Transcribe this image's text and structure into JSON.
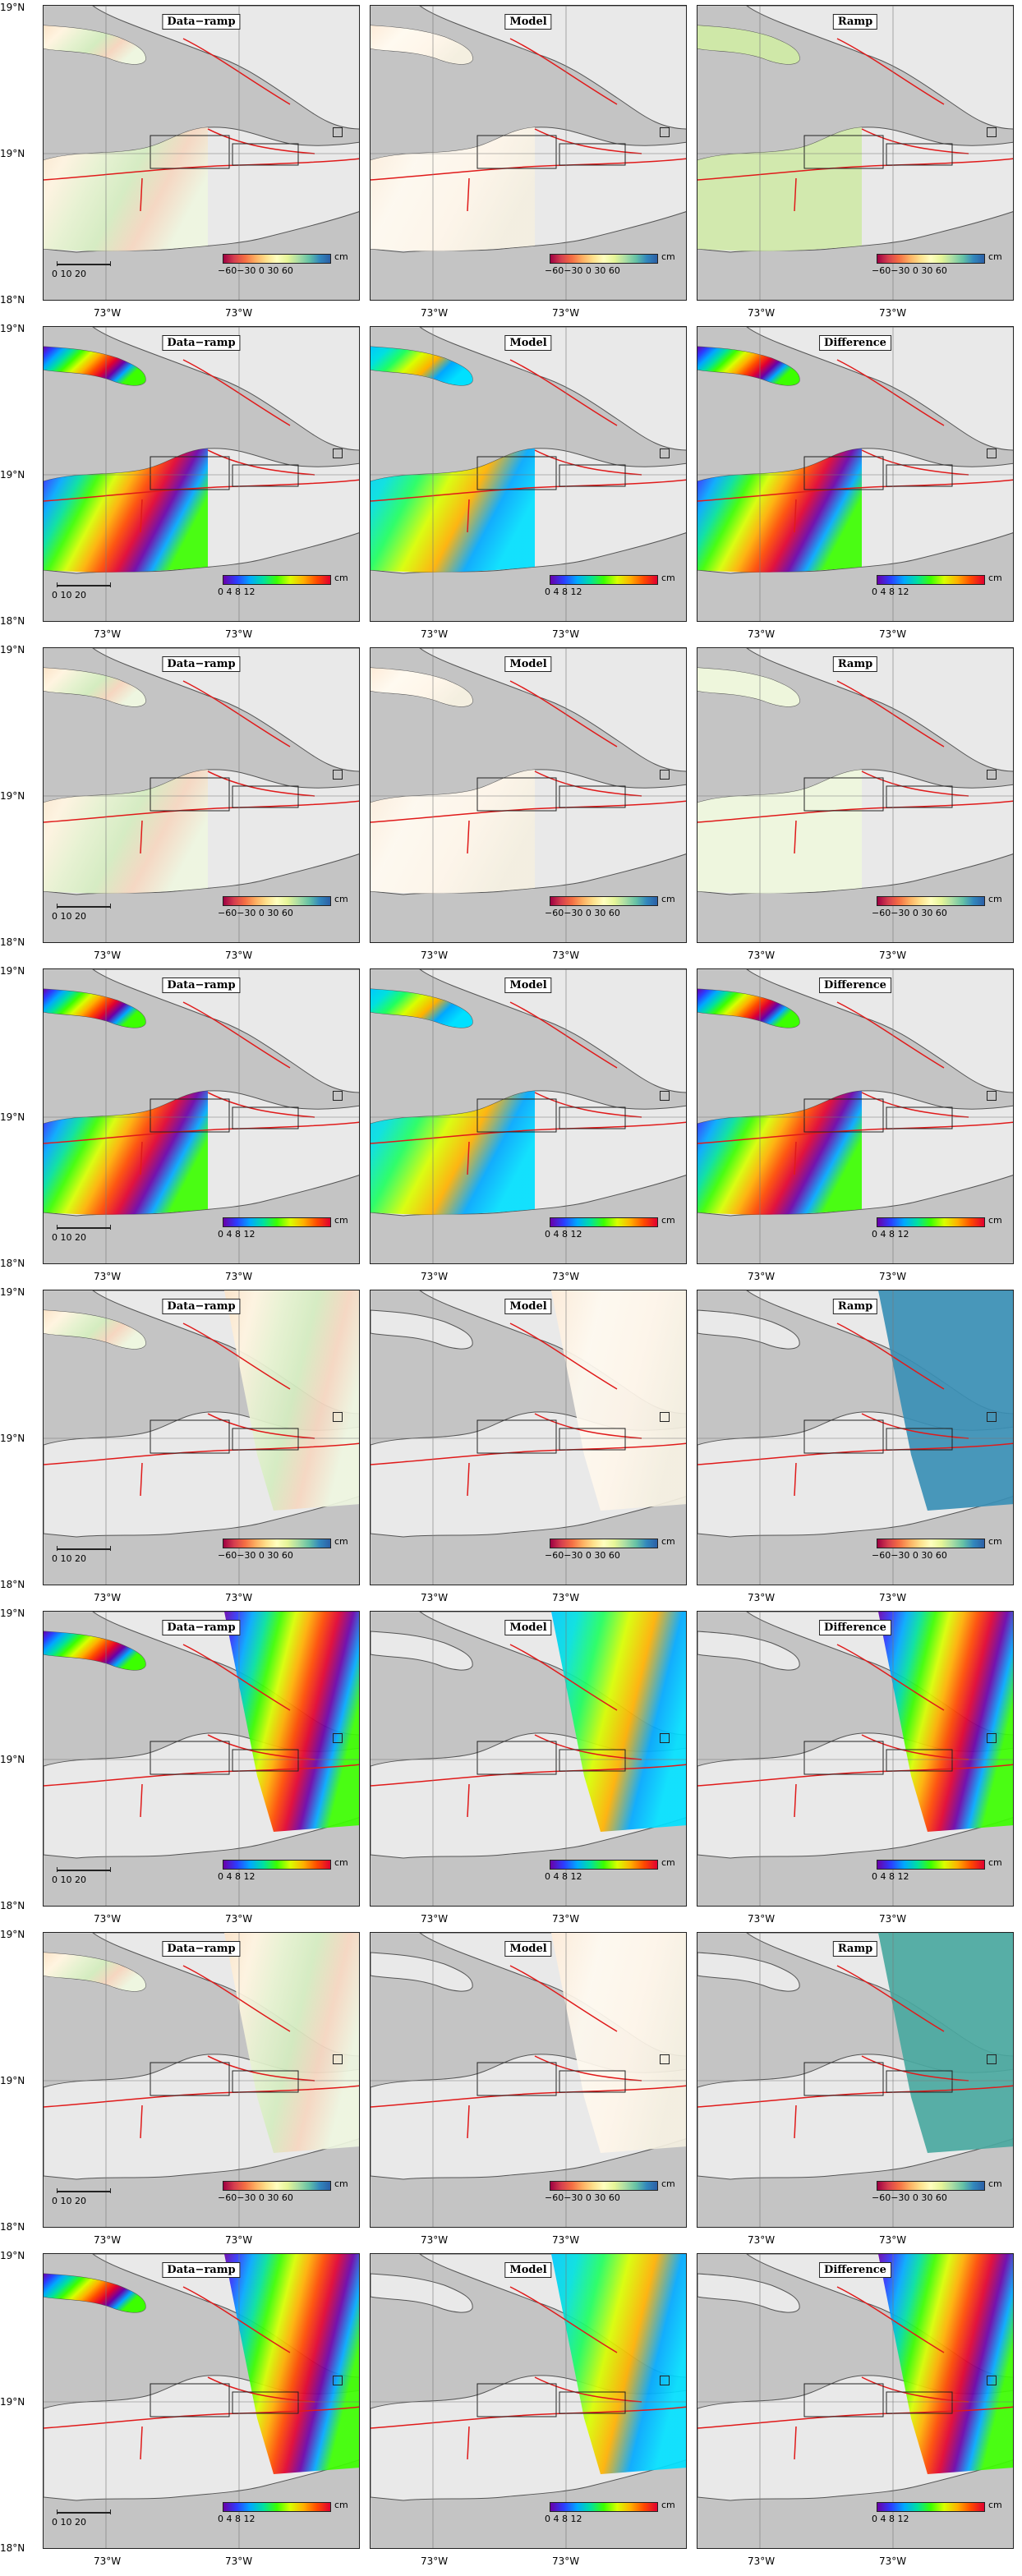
{
  "figure": {
    "rows": [
      {
        "panels": [
          {
            "label": "Data−ramp",
            "kind": "def",
            "fill": "deform"
          },
          {
            "label": "Model",
            "kind": "def",
            "fill": "deform-model"
          },
          {
            "label": "Ramp",
            "kind": "def",
            "fill": "ramp-green"
          }
        ]
      },
      {
        "panels": [
          {
            "label": "Data−ramp",
            "kind": "wrap",
            "fill": "fringe"
          },
          {
            "label": "Model",
            "kind": "wrap",
            "fill": "fringe-model"
          },
          {
            "label": "Difference",
            "kind": "wrap",
            "fill": "fringe"
          }
        ]
      },
      {
        "panels": [
          {
            "label": "Data−ramp",
            "kind": "def",
            "fill": "deform"
          },
          {
            "label": "Model",
            "kind": "def",
            "fill": "deform-model"
          },
          {
            "label": "Ramp",
            "kind": "def",
            "fill": "ramp-pale"
          }
        ]
      },
      {
        "panels": [
          {
            "label": "Data−ramp",
            "kind": "wrap",
            "fill": "fringe"
          },
          {
            "label": "Model",
            "kind": "wrap",
            "fill": "fringe-model"
          },
          {
            "label": "Difference",
            "kind": "wrap",
            "fill": "fringe"
          }
        ]
      },
      {
        "panels": [
          {
            "label": "Data−ramp",
            "kind": "def",
            "fill": "deform"
          },
          {
            "label": "Model",
            "kind": "def",
            "fill": "deform-model"
          },
          {
            "label": "Ramp",
            "kind": "def",
            "fill": "ramp-blue"
          }
        ]
      },
      {
        "panels": [
          {
            "label": "Data−ramp",
            "kind": "wrap",
            "fill": "fringe"
          },
          {
            "label": "Model",
            "kind": "wrap",
            "fill": "fringe-model"
          },
          {
            "label": "Difference",
            "kind": "wrap",
            "fill": "fringe"
          }
        ]
      },
      {
        "panels": [
          {
            "label": "Data−ramp",
            "kind": "def",
            "fill": "deform"
          },
          {
            "label": "Model",
            "kind": "def",
            "fill": "deform-model"
          },
          {
            "label": "Ramp",
            "kind": "def",
            "fill": "ramp-teal"
          }
        ]
      },
      {
        "panels": [
          {
            "label": "Data−ramp",
            "kind": "wrap",
            "fill": "fringe"
          },
          {
            "label": "Model",
            "kind": "wrap",
            "fill": "fringe-model"
          },
          {
            "label": "Difference",
            "kind": "wrap",
            "fill": "fringe"
          }
        ]
      }
    ]
  },
  "colorbars": {
    "def": {
      "ticks": "−60−30  0  30  60",
      "unit": "cm"
    },
    "wrap": {
      "ticks": "0    4    8    12",
      "unit": "cm"
    }
  },
  "scalebar": {
    "labels": "0   10   20"
  },
  "axes": {
    "lat_top": "19°N",
    "lat_mid": "19°N",
    "lat_bottom": "18°N",
    "lon_left": "73°W",
    "lon_right": "73°W"
  },
  "colors": {
    "sea": "#c4c4c4",
    "land": "#e9e9e9",
    "fault": "#e01a1a",
    "ramp-green": "#cfe8a8",
    "ramp-pale": "#eef6dc",
    "ramp-blue": "#3a8fb5",
    "ramp-teal": "#4aa8a0"
  }
}
